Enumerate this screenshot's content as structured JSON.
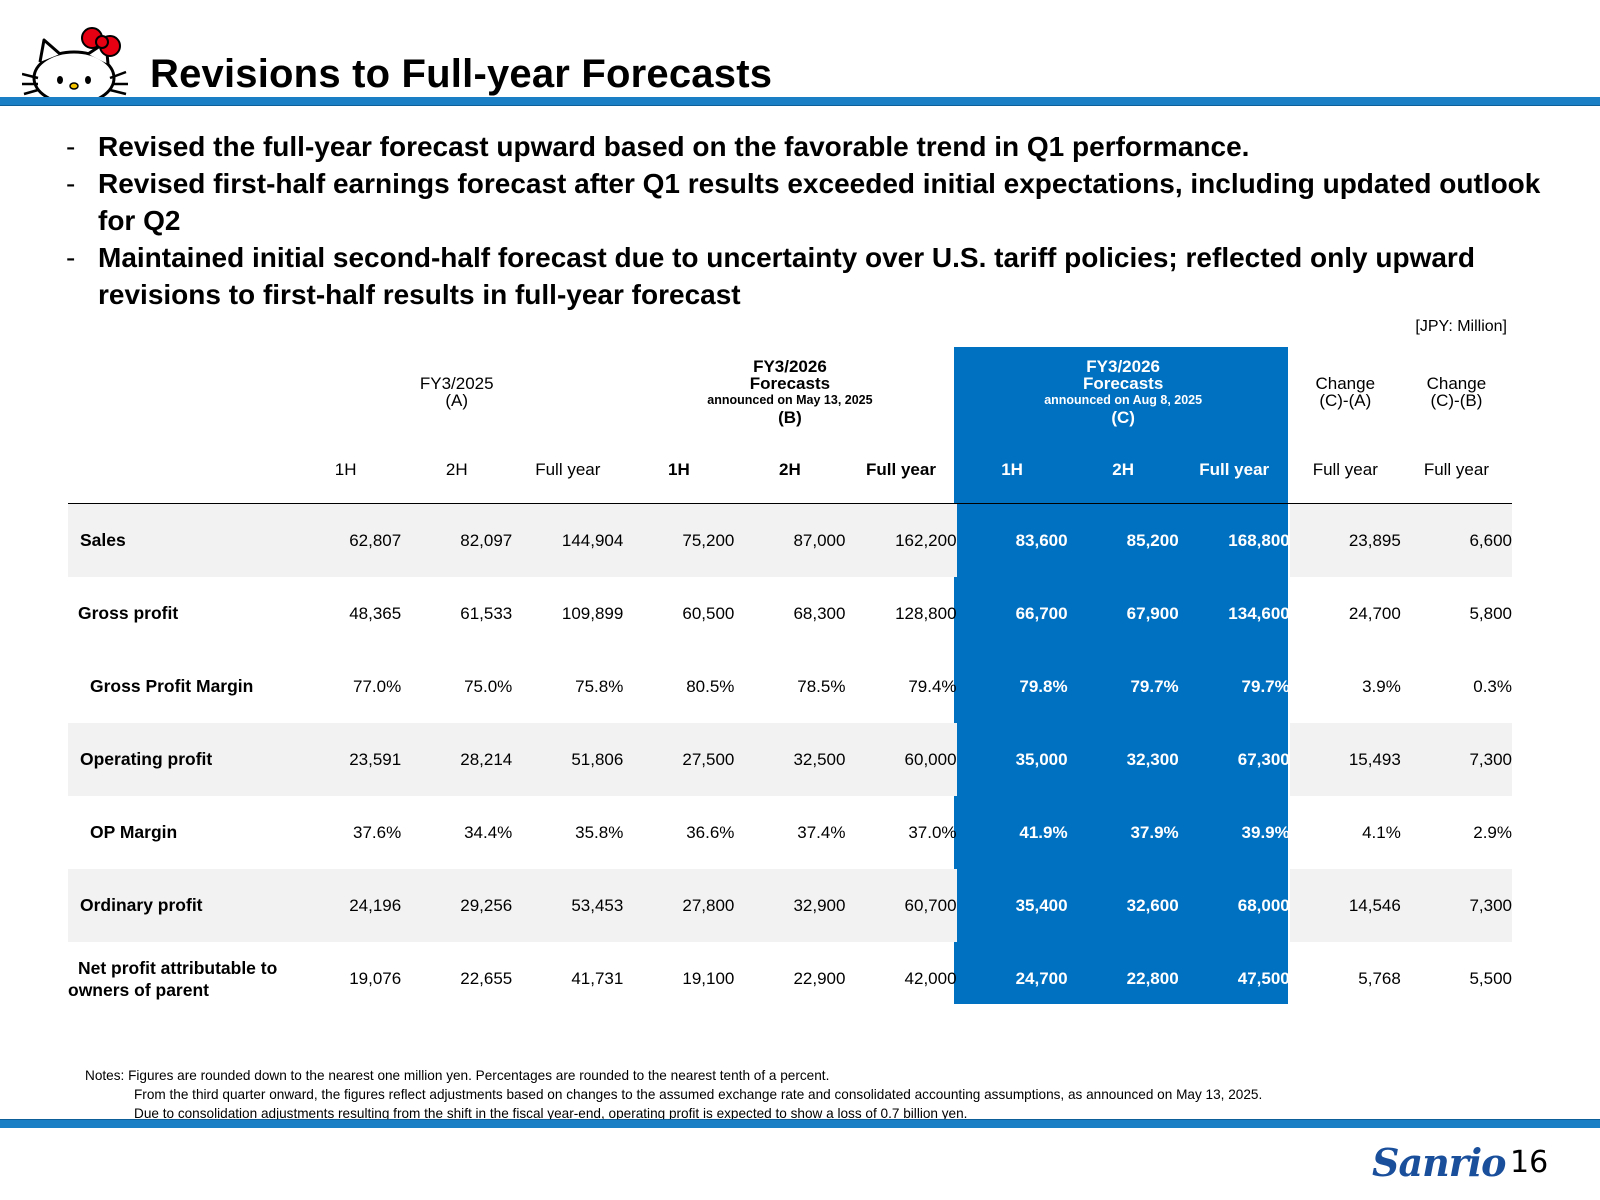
{
  "title": "Revisions to Full-year Forecasts",
  "bullets": [
    {
      "dash": "-",
      "text": "Revised the full-year forecast upward based on the favorable trend in Q1 performance."
    },
    {
      "dash": "-",
      "text": "Revised first-half earnings forecast after Q1 results exceeded initial expectations, including updated outlook for Q2"
    },
    {
      "dash": "-",
      "text": "Maintained initial second-half forecast due to uncertainty over U.S. tariff policies; reflected only upward revisions to first-half results in full-year forecast"
    }
  ],
  "unit": "[JPY: Million]",
  "table": {
    "group_a": {
      "line1": "FY3/2025",
      "line2": "(A)"
    },
    "group_b": {
      "line1": "FY3/2026",
      "line2": "Forecasts",
      "line3": "announced on May 13, 2025",
      "line4": "(B)"
    },
    "group_c": {
      "line1": "FY3/2026",
      "line2": "Forecasts",
      "line3": "announced on Aug 8, 2025",
      "line4": "(C)"
    },
    "change_ca": {
      "line1": "Change",
      "line2": "(C)-(A)"
    },
    "change_cb": {
      "line1": "Change",
      "line2": "(C)-(B)"
    },
    "subheaders": [
      "1H",
      "2H",
      "Full year",
      "1H",
      "2H",
      "Full year",
      "1H",
      "2H",
      "Full year",
      "Full year",
      "Full year"
    ],
    "rows": [
      {
        "label": "Sales",
        "values": [
          "62,807",
          "82,097",
          "144,904",
          "75,200",
          "87,000",
          "162,200",
          "83,600",
          "85,200",
          "168,800",
          "23,895",
          "6,600"
        ]
      },
      {
        "label": "Gross profit",
        "values": [
          "48,365",
          "61,533",
          "109,899",
          "60,500",
          "68,300",
          "128,800",
          "66,700",
          "67,900",
          "134,600",
          "24,700",
          "5,800"
        ]
      },
      {
        "label": "Gross Profit Margin",
        "values": [
          "77.0%",
          "75.0%",
          "75.8%",
          "80.5%",
          "78.5%",
          "79.4%",
          "79.8%",
          "79.7%",
          "79.7%",
          "3.9%",
          "0.3%"
        ]
      },
      {
        "label": "Operating profit",
        "values": [
          "23,591",
          "28,214",
          "51,806",
          "27,500",
          "32,500",
          "60,000",
          "35,000",
          "32,300",
          "67,300",
          "15,493",
          "7,300"
        ]
      },
      {
        "label": "OP Margin",
        "values": [
          "37.6%",
          "34.4%",
          "35.8%",
          "36.6%",
          "37.4%",
          "37.0%",
          "41.9%",
          "37.9%",
          "39.9%",
          "4.1%",
          "2.9%"
        ]
      },
      {
        "label": "Ordinary profit",
        "values": [
          "24,196",
          "29,256",
          "53,453",
          "27,800",
          "32,900",
          "60,700",
          "35,400",
          "32,600",
          "68,000",
          "14,546",
          "7,300"
        ]
      },
      {
        "label_line1": "Net profit attributable to",
        "label_line2": "owners of parent",
        "values": [
          "19,076",
          "22,655",
          "41,731",
          "19,100",
          "22,900",
          "42,000",
          "24,700",
          "22,800",
          "47,500",
          "5,768",
          "5,500"
        ]
      }
    ]
  },
  "notes": {
    "line1": "Notes: Figures are rounded down to the nearest one million yen. Percentages are rounded to the nearest tenth of a percent.",
    "line2": "From the third quarter onward, the figures reflect adjustments based on changes to the assumed exchange rate and consolidated accounting assumptions, as announced on May 13, 2025.",
    "line3": "Due to consolidation adjustments resulting from the shift in the fiscal year-end, operating profit is expected to show a loss of 0.7 billion yen."
  },
  "brand_logo_text": "Sanrio",
  "page_number": "16",
  "colors": {
    "accent": "#1a7fc4",
    "highlight": "#0070c0",
    "row_shade": "#f2f2f2"
  }
}
